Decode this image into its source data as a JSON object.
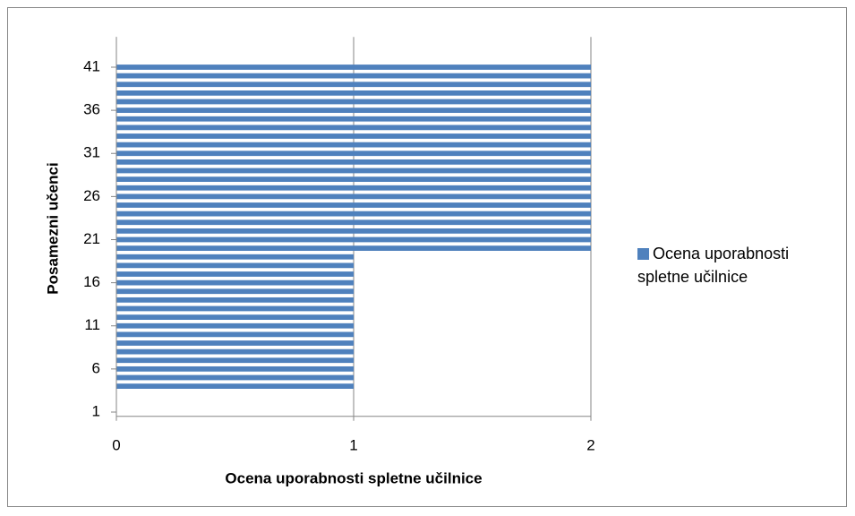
{
  "chart_data": {
    "type": "hbar",
    "xlabel": "Ocena uporabnosti spletne učilnice",
    "ylabel": "Posamezni učenci",
    "categories": [
      1,
      null,
      null,
      null,
      null,
      6,
      null,
      null,
      null,
      null,
      11,
      null,
      null,
      null,
      null,
      16,
      null,
      null,
      null,
      null,
      21,
      null,
      null,
      null,
      null,
      26,
      null,
      null,
      null,
      null,
      31,
      null,
      null,
      null,
      null,
      36,
      null,
      null,
      null,
      null,
      41,
      null,
      null,
      null
    ],
    "series": [
      {
        "name": "Ocena uporabnosti spletne učilnice",
        "color": "#4f81bd",
        "values": [
          null,
          null,
          null,
          1,
          1,
          1,
          1,
          1,
          1,
          1,
          1,
          1,
          1,
          1,
          1,
          1,
          1,
          1,
          1,
          2,
          2,
          2,
          2,
          2,
          2,
          2,
          2,
          2,
          2,
          2,
          2,
          2,
          2,
          2,
          2,
          2,
          2,
          2,
          2,
          2,
          2,
          null,
          null,
          null
        ]
      }
    ],
    "xlim": [
      0,
      2
    ],
    "xticks": [
      0,
      1,
      2
    ],
    "grid": true,
    "legend": "right"
  }
}
